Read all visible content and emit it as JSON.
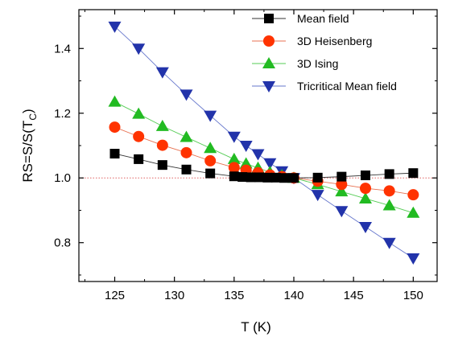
{
  "chart_data": {
    "type": "scatter",
    "xlabel": "T (K)",
    "ylabel_main": "RS=S/S(T",
    "ylabel_sub": "C",
    "ylabel_close": ")",
    "xlim": [
      122,
      152
    ],
    "ylim": [
      0.68,
      1.52
    ],
    "x_ticks": [
      125,
      130,
      135,
      140,
      145,
      150
    ],
    "x_tick_labels": [
      "125",
      "130",
      "135",
      "140",
      "145",
      "150"
    ],
    "y_ticks": [
      0.8,
      1.0,
      1.2,
      1.4
    ],
    "y_tick_labels": [
      "0.8",
      "1.0",
      "1.2",
      "1.4"
    ],
    "reference_line": {
      "y": 1.0,
      "color": "#e06060",
      "style": "dotted"
    },
    "legend_position": "top-right",
    "series": [
      {
        "name": "Mean field",
        "marker": "square",
        "marker_color": "#000000",
        "line_color": "#333333",
        "x": [
          125,
          127,
          129,
          131,
          133,
          135,
          135.7,
          136.4,
          137.1,
          137.8,
          138.5,
          139.2,
          140,
          142,
          144,
          146,
          148,
          150
        ],
        "y": [
          1.075,
          1.058,
          1.04,
          1.026,
          1.014,
          1.005,
          1.003,
          1.002,
          1.002,
          1.001,
          1.001,
          1.0,
          1.0,
          1.001,
          1.004,
          1.008,
          1.012,
          1.015
        ]
      },
      {
        "name": "3D Heisenberg",
        "marker": "circle",
        "marker_color": "#ff3300",
        "line_color": "#e87050",
        "x": [
          125,
          127,
          129,
          131,
          133,
          135,
          136,
          137,
          138,
          139,
          140,
          142,
          144,
          146,
          148,
          150
        ],
        "y": [
          1.157,
          1.128,
          1.101,
          1.078,
          1.053,
          1.032,
          1.024,
          1.016,
          1.009,
          1.004,
          1.0,
          0.99,
          0.98,
          0.968,
          0.96,
          0.948
        ]
      },
      {
        "name": "3D Ising",
        "marker": "triangle-up",
        "marker_color": "#22bb22",
        "line_color": "#55cc55",
        "x": [
          125,
          127,
          129,
          131,
          133,
          135,
          136,
          137,
          138,
          139,
          140,
          142,
          144,
          146,
          148,
          150
        ],
        "y": [
          1.235,
          1.198,
          1.16,
          1.126,
          1.092,
          1.058,
          1.044,
          1.031,
          1.018,
          1.008,
          1.0,
          0.98,
          0.958,
          0.936,
          0.915,
          0.892
        ]
      },
      {
        "name": "Tricritical Mean field",
        "marker": "triangle-down",
        "marker_color": "#2233aa",
        "line_color": "#6677cc",
        "x": [
          125,
          127,
          129,
          131,
          133,
          135,
          136,
          137,
          138,
          139,
          140,
          142,
          144,
          146,
          148,
          150
        ],
        "y": [
          1.468,
          1.4,
          1.327,
          1.258,
          1.193,
          1.128,
          1.1,
          1.074,
          1.046,
          1.021,
          1.0,
          0.948,
          0.898,
          0.849,
          0.8,
          0.752
        ]
      }
    ]
  }
}
